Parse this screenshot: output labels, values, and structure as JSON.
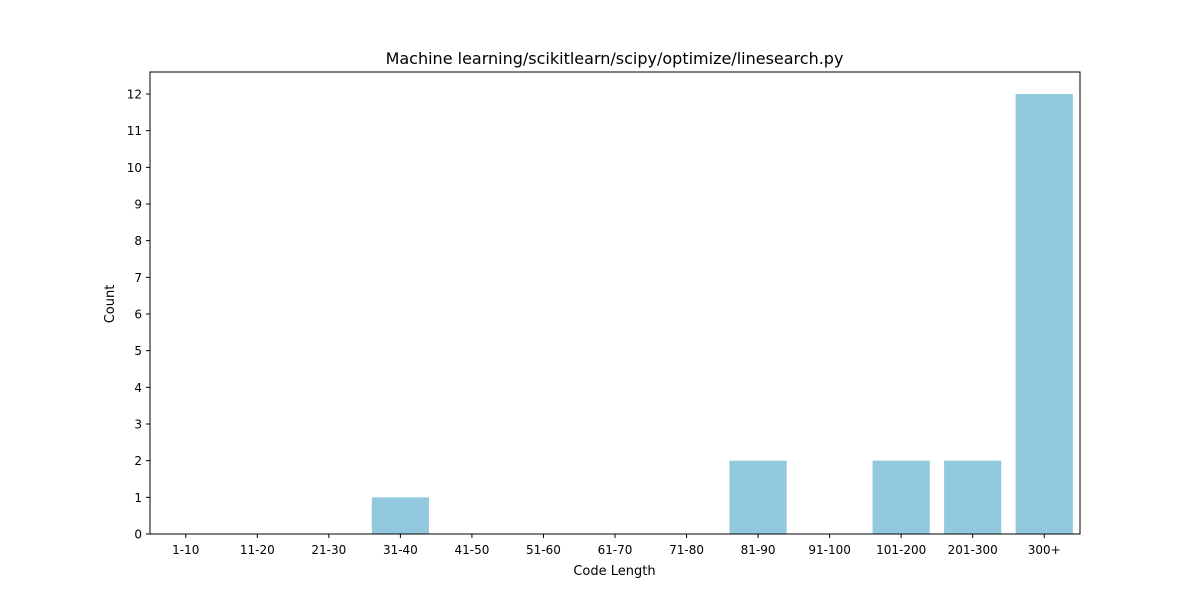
{
  "chart_data": {
    "type": "bar",
    "title": "Machine learning/scikitlearn/scipy/optimize/linesearch.py",
    "xlabel": "Code Length",
    "ylabel": "Count",
    "categories": [
      "1-10",
      "11-20",
      "21-30",
      "31-40",
      "41-50",
      "51-60",
      "61-70",
      "71-80",
      "81-90",
      "91-100",
      "101-200",
      "201-300",
      "300+"
    ],
    "values": [
      0,
      0,
      0,
      1,
      0,
      0,
      0,
      0,
      2,
      0,
      2,
      2,
      12
    ],
    "ylim": [
      0,
      12.6
    ],
    "yticks": [
      0,
      1,
      2,
      3,
      4,
      5,
      6,
      7,
      8,
      9,
      10,
      11,
      12
    ],
    "grid": false,
    "legend": "none",
    "bar_color": "#92c9de"
  }
}
